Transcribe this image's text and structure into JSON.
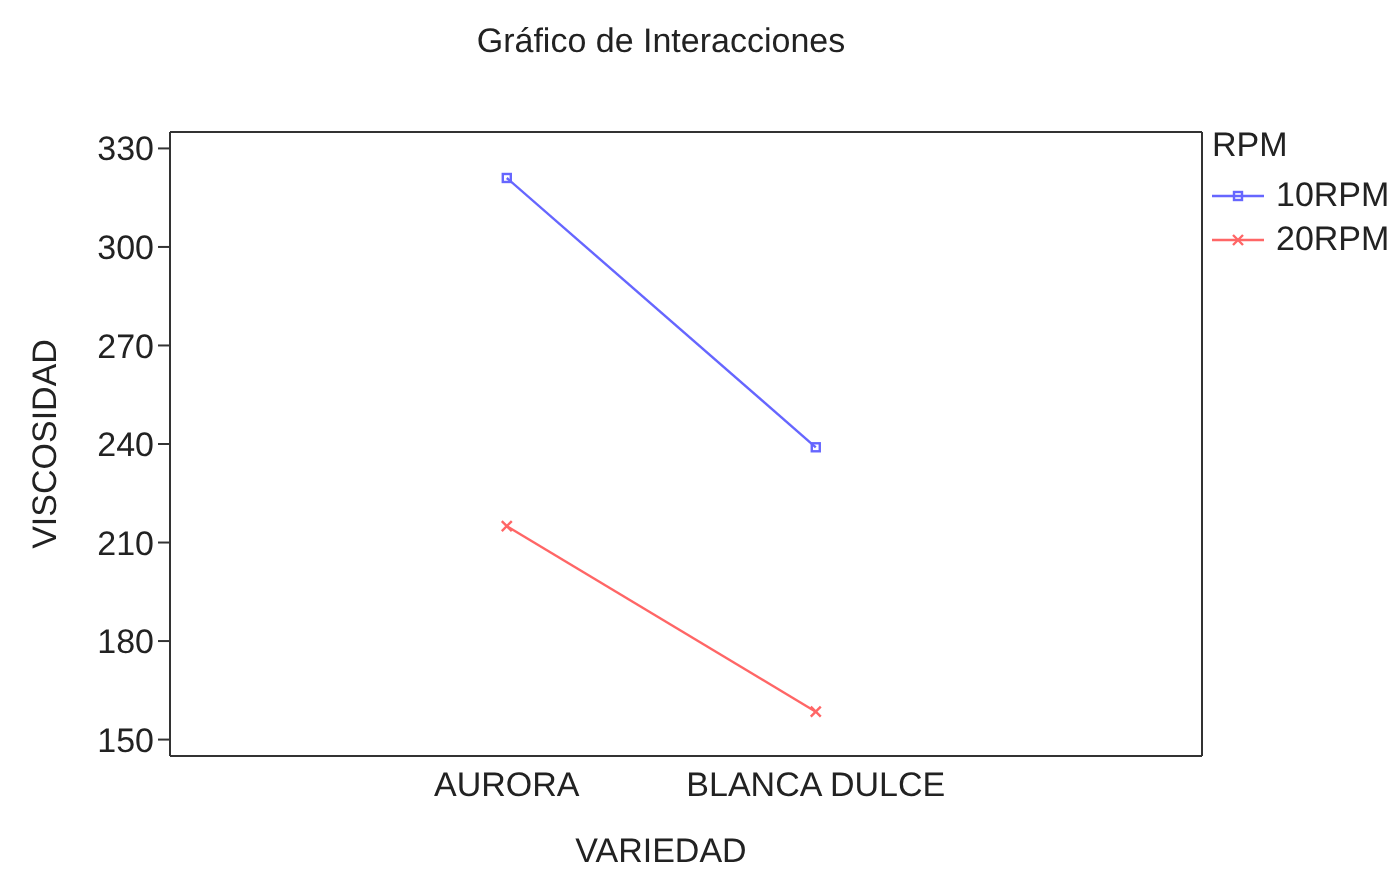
{
  "chart_data": {
    "type": "line",
    "title": "Gráfico de Interacciones",
    "xlabel": "VARIEDAD",
    "ylabel": "VISCOSIDAD",
    "legend_title": "RPM",
    "categories": [
      "AURORA",
      "BLANCA DULCE"
    ],
    "series": [
      {
        "name": "10RPM",
        "color": "#6666ff",
        "values": [
          321,
          239
        ],
        "marker": "square"
      },
      {
        "name": "20RPM",
        "color": "#ff6666",
        "values": [
          215,
          158.5
        ],
        "marker": "cross"
      }
    ],
    "ylim": [
      145,
      335
    ],
    "yticks": [
      150,
      180,
      210,
      240,
      270,
      300,
      330
    ],
    "legend": "top right"
  }
}
